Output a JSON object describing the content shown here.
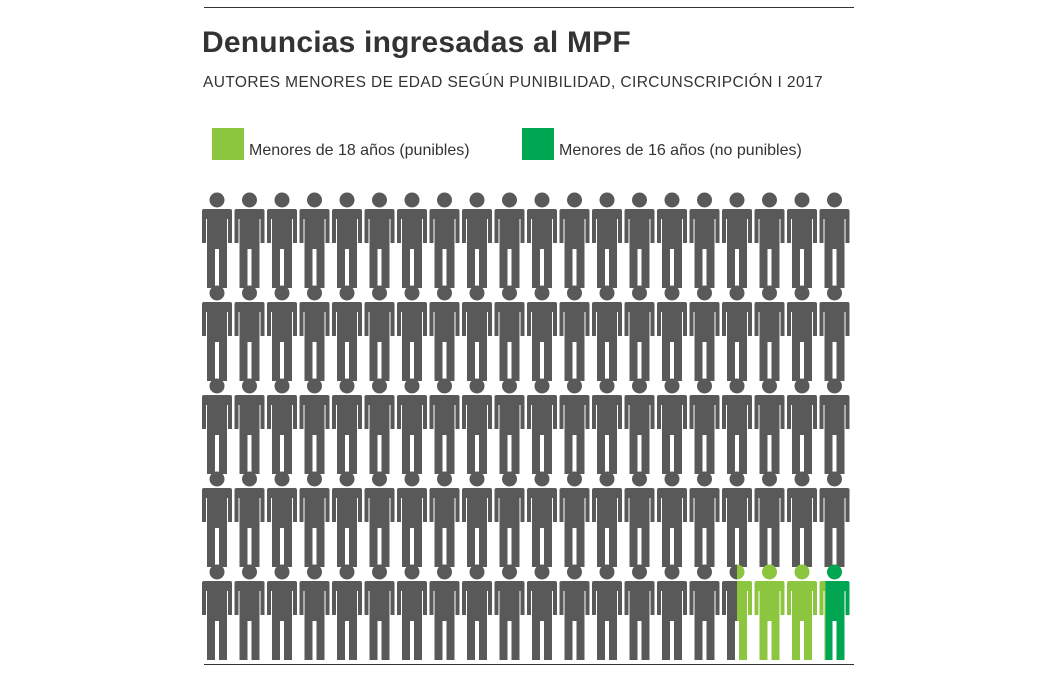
{
  "title": "Denuncias ingresadas al MPF",
  "subtitle": "AUTORES MENORES DE EDAD SEGÚN PUNIBILIDAD, CIRCUNSCRIPCIÓN I 2017",
  "colors": {
    "base": "#595959",
    "punibles": "#8cc63f",
    "no_punibles": "#00a651",
    "text": "#333333"
  },
  "chart_data": {
    "type": "pictogram",
    "total_icons": 100,
    "rows": 5,
    "columns": 20,
    "icon": "person-icon",
    "series": [
      {
        "name": "Menores de 18 años (punibles)",
        "color": "#8cc63f",
        "value": 2.7
      },
      {
        "name": "Menores de 16 años (no punibles)",
        "color": "#00a651",
        "value": 0.8
      }
    ],
    "legend_position": "top"
  },
  "legend": [
    {
      "label": "Menores de 18 años (punibles)",
      "color": "#8cc63f"
    },
    {
      "label": "Menores de 16 años (no punibles)",
      "color": "#00a651"
    }
  ]
}
